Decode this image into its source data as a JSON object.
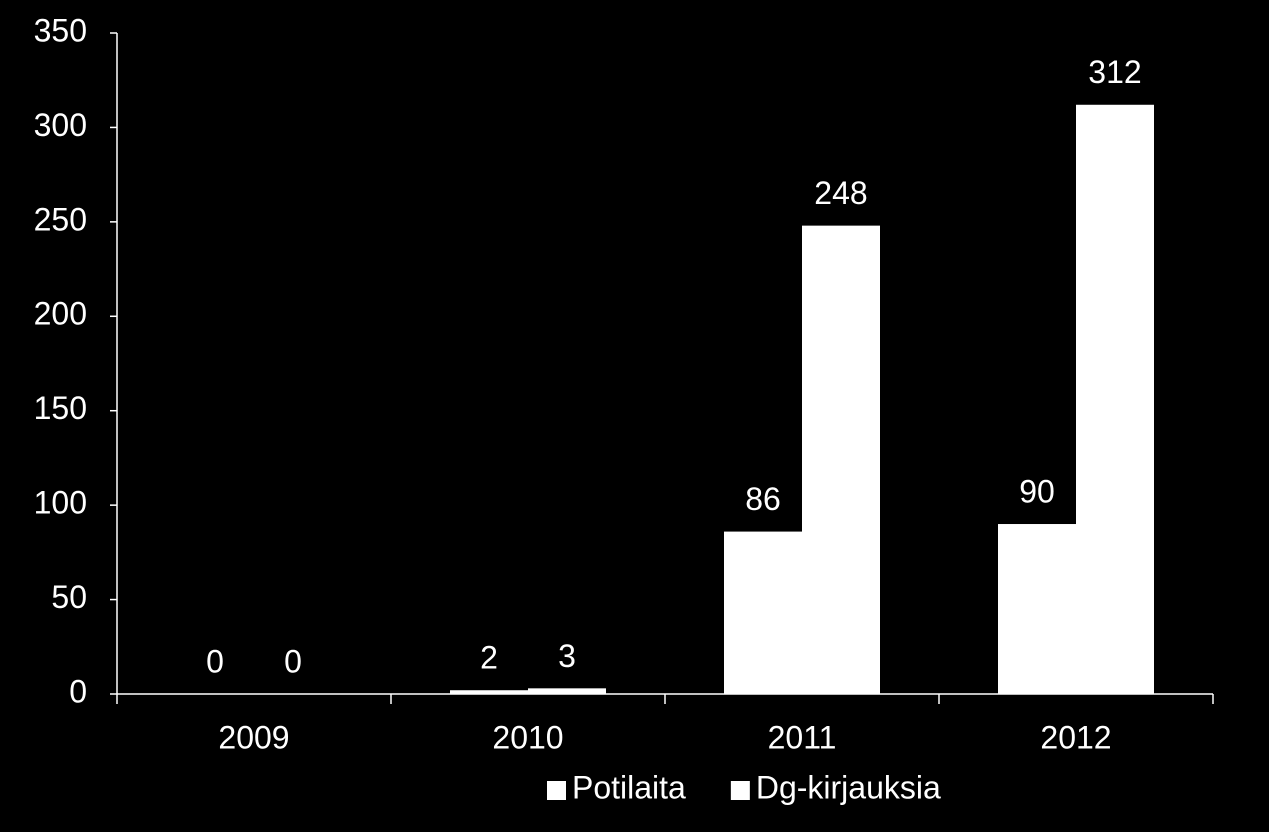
{
  "chart_data": {
    "type": "bar",
    "categories": [
      "2009",
      "2010",
      "2011",
      "2012"
    ],
    "series": [
      {
        "name": "Potilaita",
        "color": "#ffffff",
        "values": [
          0,
          2,
          86,
          90
        ]
      },
      {
        "name": "Dg-kirjauksia",
        "color": "#ffffff",
        "values": [
          0,
          3,
          248,
          312
        ]
      }
    ],
    "ylim": [
      0,
      350
    ],
    "yticks": [
      0,
      50,
      100,
      150,
      200,
      250,
      300,
      350
    ],
    "grid": false,
    "legend": "bottom"
  }
}
